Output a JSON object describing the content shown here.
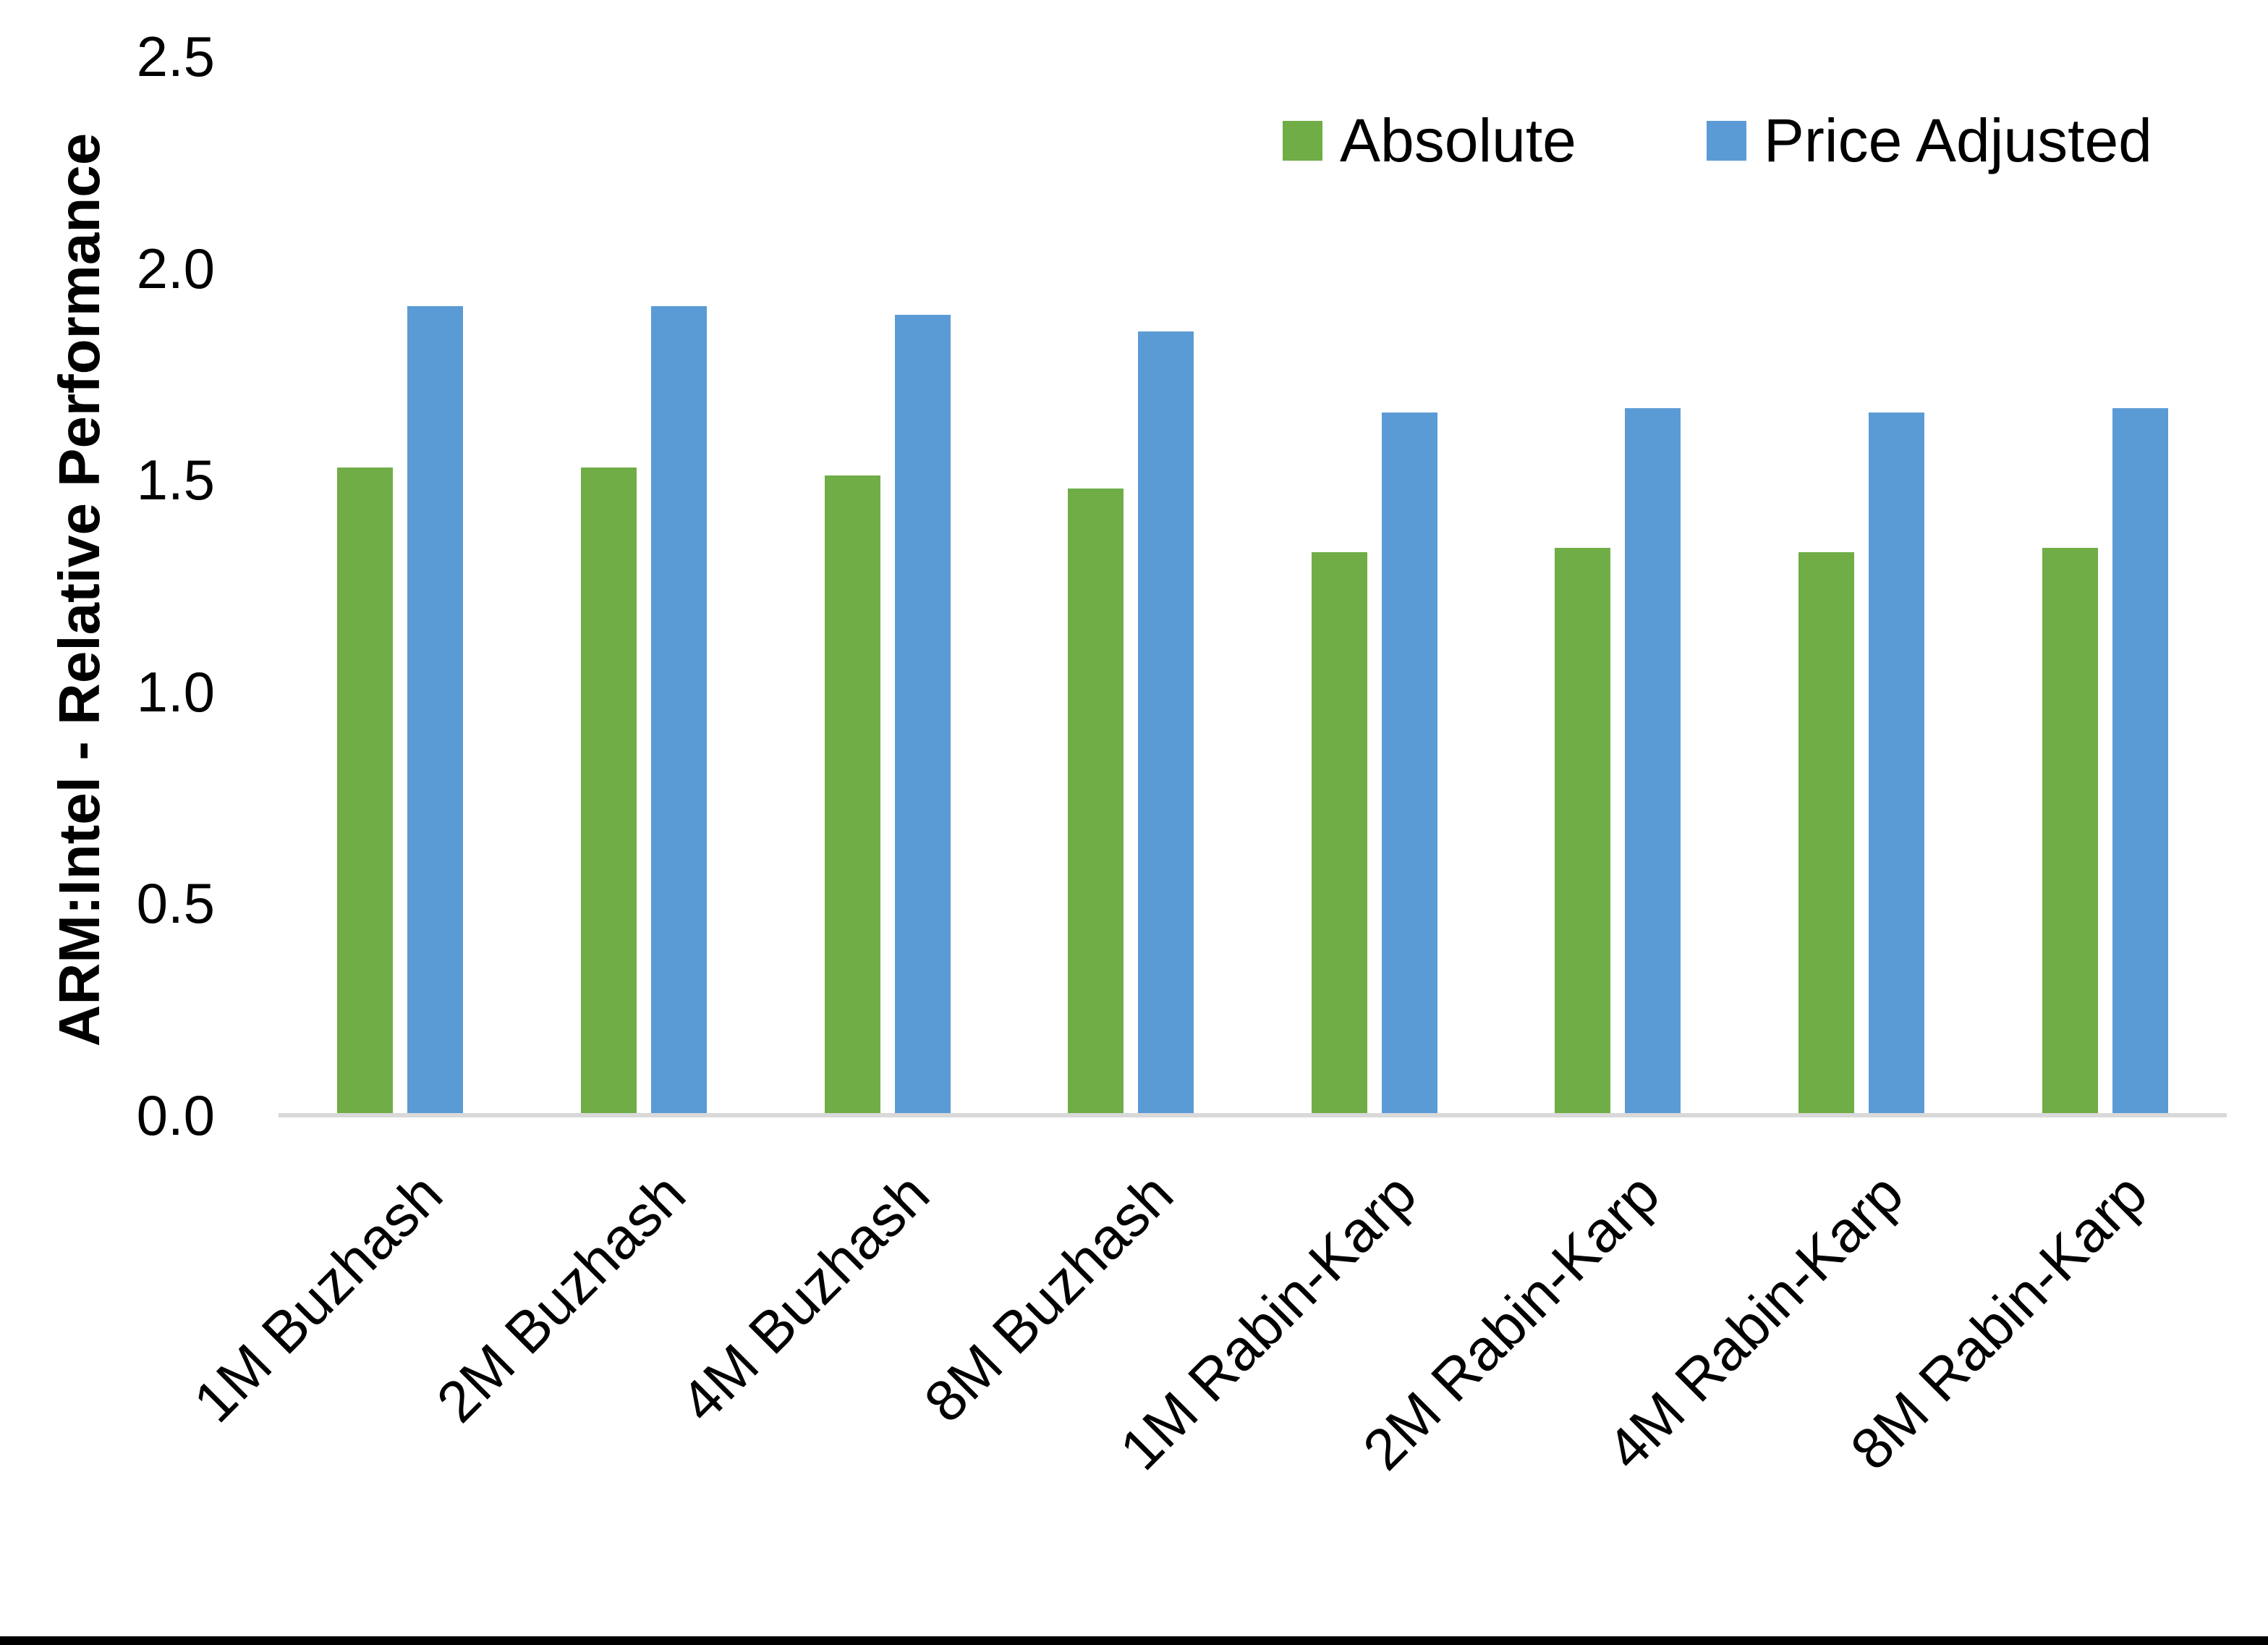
{
  "chart_data": {
    "type": "bar",
    "title": "",
    "xlabel": "",
    "ylabel": "ARM:Intel - Relative Performance",
    "ylim": [
      0.0,
      2.5
    ],
    "ytick_step": 0.5,
    "ytick_decimals": 1,
    "grid": false,
    "legend_position": "top-right",
    "background_color": "#ffffff",
    "axis_line_color": "#d9d9d9",
    "text_color": "#000000",
    "categories": [
      "1M Buzhash",
      "2M Buzhash",
      "4M Buzhash",
      "8M Buzhash",
      "1M Rabin-Karp",
      "2M Rabin-Karp",
      "4M Rabin-Karp",
      "8M Rabin-Karp"
    ],
    "series": [
      {
        "name": "Absolute",
        "color": "#70AD47",
        "values": [
          1.53,
          1.53,
          1.51,
          1.48,
          1.33,
          1.34,
          1.33,
          1.34
        ]
      },
      {
        "name": "Price Adjusted",
        "color": "#5B9BD5",
        "values": [
          1.91,
          1.91,
          1.89,
          1.85,
          1.66,
          1.67,
          1.66,
          1.67
        ]
      }
    ]
  }
}
